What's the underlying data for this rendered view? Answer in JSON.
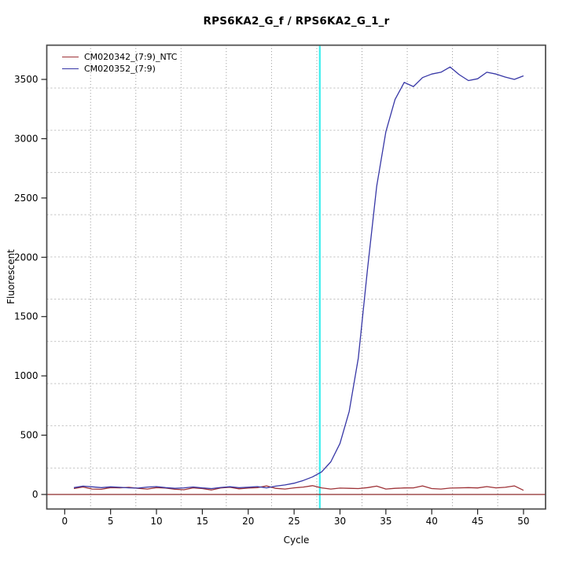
{
  "chart": {
    "title": "RPS6KA2_G_f / RPS6KA2_G_1_r",
    "xlabel": "Cycle",
    "ylabel": "Fluorescent"
  },
  "chart_data": {
    "type": "line",
    "title": "RPS6KA2_G_f / RPS6KA2_G_1_r",
    "xlabel": "Cycle",
    "ylabel": "Fluorescent",
    "x_ticks": [
      0,
      5,
      10,
      15,
      20,
      25,
      30,
      35,
      40,
      45,
      50
    ],
    "y_ticks": [
      0,
      500,
      1000,
      1500,
      2000,
      2500,
      3000,
      3500
    ],
    "xlim": [
      -2,
      52.3
    ],
    "ylim": [
      -120,
      3790
    ],
    "grid": true,
    "legend_position": "top-left",
    "x_gridlines": [
      2.82,
      7.75,
      12.68,
      17.61,
      22.54,
      27.47,
      32.4,
      37.33,
      42.26,
      47.19
    ],
    "y_gridlines": [
      223,
      579,
      935,
      1291,
      1647,
      2003,
      2359,
      2715,
      3071,
      3427
    ],
    "threshold_line_y": 0,
    "threshold_line_color": "#8e2a2a",
    "ct_line_x": 27.8,
    "ct_line_color": "#3beeee",
    "x": [
      1,
      2,
      3,
      4,
      5,
      6,
      7,
      8,
      9,
      10,
      11,
      12,
      13,
      14,
      15,
      16,
      17,
      18,
      19,
      20,
      21,
      22,
      23,
      24,
      25,
      26,
      27,
      28,
      29,
      30,
      31,
      32,
      33,
      34,
      35,
      36,
      37,
      38,
      39,
      40,
      41,
      42,
      43,
      44,
      45,
      46,
      47,
      48,
      49,
      50
    ],
    "series": [
      {
        "name": "CM020342_(7:9)_NTC",
        "color": "#9e3237",
        "values": [
          50,
          63,
          46,
          44,
          58,
          56,
          60,
          52,
          46,
          58,
          54,
          44,
          40,
          56,
          50,
          38,
          55,
          60,
          48,
          54,
          58,
          72,
          52,
          46,
          56,
          62,
          74,
          56,
          46,
          54,
          52,
          50,
          58,
          70,
          46,
          52,
          55,
          56,
          72,
          50,
          46,
          54,
          56,
          58,
          55,
          66,
          56,
          60,
          72,
          35
        ]
      },
      {
        "name": "CM020352_(7:9)",
        "color": "#3737a6",
        "values": [
          58,
          70,
          64,
          58,
          64,
          60,
          56,
          54,
          62,
          66,
          58,
          52,
          56,
          63,
          55,
          50,
          59,
          65,
          57,
          61,
          66,
          56,
          70,
          80,
          95,
          118,
          148,
          190,
          275,
          430,
          700,
          1150,
          1900,
          2600,
          3060,
          3330,
          3475,
          3440,
          3515,
          3545,
          3560,
          3605,
          3540,
          3490,
          3505,
          3560,
          3545,
          3520,
          3500,
          3530
        ]
      }
    ]
  }
}
